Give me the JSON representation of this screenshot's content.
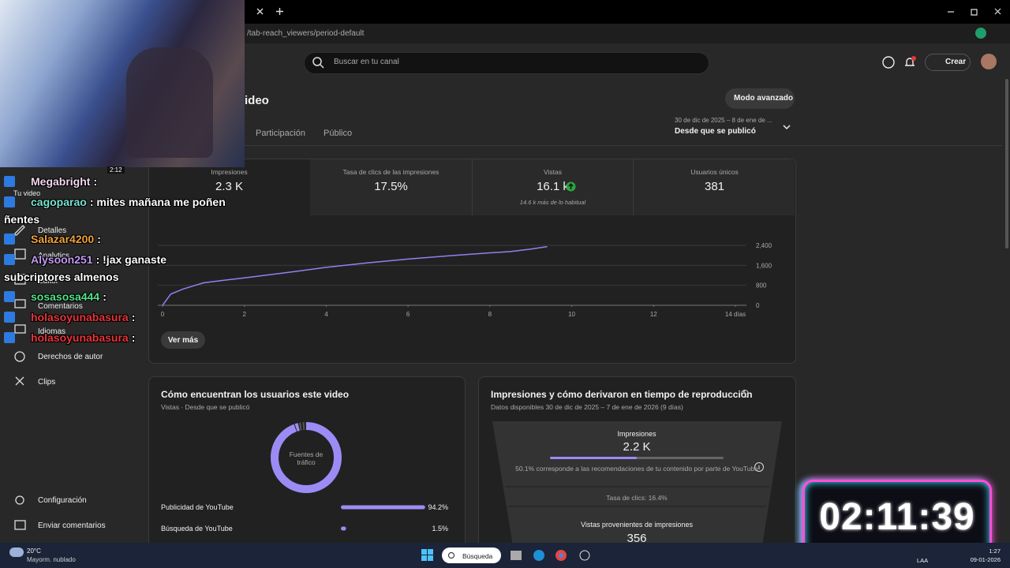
{
  "browser": {
    "url": "/tab-reach_viewers/period-default"
  },
  "stream": {
    "cam_time": "2:12",
    "timer": "02:11:39",
    "chat": [
      {
        "user": "Megabright",
        "message": ":",
        "color": "#f3d7f0"
      },
      {
        "user": "cagoparao",
        "message": ": mites mañana me poñen ñentes",
        "color": "#79e3d2"
      },
      {
        "user": "Salazar4200",
        "message": ":",
        "color": "#f2a23a"
      },
      {
        "user": "Alysoon251",
        "message": ": !jax ganaste subcriptores almenos",
        "color": "#c49af5"
      },
      {
        "user": "sosasosa444",
        "message": ":",
        "color": "#52e28a"
      },
      {
        "user": "holasoyunabasura",
        "message": ":",
        "color": "#e8343a"
      },
      {
        "user": "holasoyunabasura",
        "message": ":",
        "color": "#e8343a"
      }
    ]
  },
  "sidebar": {
    "items": [
      "Tu video",
      "Detalles",
      "Analytics",
      "Editor",
      "Comentarios",
      "Idiomas",
      "Derechos de autor",
      "Clips",
      "Configuración",
      "Enviar comentarios"
    ]
  },
  "header": {
    "search_placeholder": "Buscar en tu canal",
    "create": "Crear",
    "title": "ideo",
    "advanced_mode": "Modo avanzado",
    "tabs": [
      "Participación",
      "Público"
    ],
    "date_range": "30 de dic de 2025 – 8 de ene de ...",
    "period": "Desde que se publicó"
  },
  "metrics": [
    {
      "label": "Impresiones",
      "value": "2.3 K"
    },
    {
      "label": "Tasa de clics de las impresiones",
      "value": "17.5%"
    },
    {
      "label": "Vistas",
      "value": "16.1 k",
      "note": "14.6 k más de lo habitual"
    },
    {
      "label": "Usuarios únicos",
      "value": "381"
    }
  ],
  "chart_data": {
    "type": "line",
    "x": [
      0,
      0.2,
      0.5,
      1,
      1.5,
      2,
      3,
      4,
      5,
      6,
      7,
      8,
      8.5,
      9,
      9.4
    ],
    "values": [
      0,
      450,
      650,
      900,
      1000,
      1100,
      1300,
      1520,
      1700,
      1850,
      1980,
      2100,
      2150,
      2250,
      2350
    ],
    "color": "#8f82f0",
    "xlim": [
      0,
      14
    ],
    "ylim": [
      0,
      2400
    ],
    "xticks": [
      0,
      2,
      4,
      6,
      8,
      10,
      12,
      {
        "value": 14,
        "label": "14 días"
      }
    ],
    "yticks": [
      0,
      800,
      {
        "value": 1600,
        "label": "1,600"
      },
      {
        "value": 2400,
        "label": "2,400"
      }
    ],
    "grid": true
  },
  "more_button": "Ver más",
  "traffic": {
    "title": "Cómo encuentran los usuarios este video",
    "subtitle": "Vistas · Desde que se publicó",
    "donut_label": "Fuentes de tráfico",
    "color": "#9b8cf5",
    "rows": [
      {
        "name": "Publicidad de YouTube",
        "value": 94.2,
        "value_label": "94.2%"
      },
      {
        "name": "Búsqueda de YouTube",
        "value": 1.5,
        "value_label": "1.5%"
      }
    ]
  },
  "funnel": {
    "title": "Impresiones y cómo derivaron en tiempo de reproducción",
    "subtitle": "Datos disponibles 30 de dic de 2025 – 7 de ene de 2026 (9 días)",
    "impressions_label": "Impresiones",
    "impressions_value": "2.2 K",
    "recommendation_note": "50.1% corresponde a las recomendaciones de tu contenido por parte de YouTube",
    "ctr": "Tasa de clics: 16.4%",
    "views_label": "Vistas provenientes de impresiones",
    "views_value": "356"
  },
  "taskbar": {
    "temperature": "20°C",
    "weather": "Mayorm. nublado",
    "search": "Búsqueda",
    "language": "LAA",
    "time": "1:27",
    "date": "09-01-2026"
  }
}
